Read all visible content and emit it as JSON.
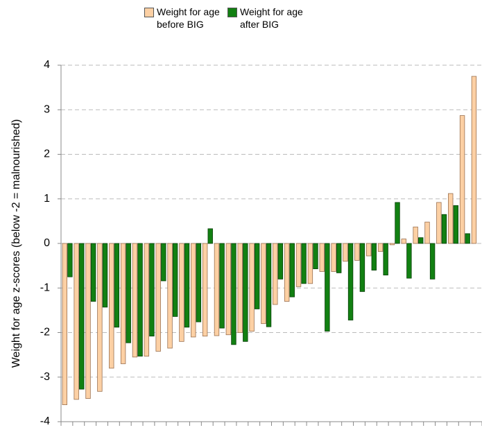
{
  "chart_data": {
    "type": "bar",
    "y_label": "Weight for age z-scores (below -2 = malnourished)",
    "categories": [
      null,
      null,
      null,
      null,
      null,
      null,
      null,
      null,
      null,
      null,
      null,
      null,
      null,
      null,
      null,
      null,
      null,
      null,
      null,
      null,
      null,
      null,
      null,
      null,
      null,
      null,
      null,
      null,
      null,
      null,
      null,
      null,
      null,
      null,
      null,
      null
    ],
    "series": [
      {
        "name": "Weight for age before BIG",
        "color": "#fcd0a4",
        "values": [
          -3.62,
          -3.5,
          -3.48,
          -3.32,
          -2.8,
          -2.7,
          -2.55,
          -2.53,
          -2.42,
          -2.35,
          -2.2,
          -2.1,
          -2.08,
          -2.07,
          -2.05,
          -2.0,
          -1.97,
          -1.8,
          -1.37,
          -1.3,
          -0.97,
          -0.9,
          -0.63,
          -0.63,
          -0.4,
          -0.38,
          -0.28,
          -0.18,
          -0.03,
          0.1,
          0.37,
          0.48,
          0.92,
          1.12,
          2.87,
          3.75
        ]
      },
      {
        "name": "Weight for age after BIG",
        "color": "#128012",
        "values": [
          -0.75,
          -3.27,
          -1.3,
          -1.43,
          -1.88,
          -2.23,
          -2.53,
          -2.08,
          -0.84,
          -1.64,
          -1.88,
          -1.76,
          0.33,
          -1.9,
          -2.27,
          -2.2,
          -1.47,
          -1.87,
          -0.8,
          -1.2,
          -0.9,
          -0.57,
          -1.97,
          -0.66,
          -1.72,
          -1.08,
          -0.6,
          -0.71,
          0.92,
          -0.78,
          0.13,
          -0.8,
          0.65,
          0.85,
          0.22,
          null
        ]
      }
    ],
    "ylim": [
      -4,
      4
    ],
    "yticks": [
      -4,
      -3,
      -2,
      -1,
      0,
      1,
      2,
      3,
      4
    ],
    "grid": true
  }
}
